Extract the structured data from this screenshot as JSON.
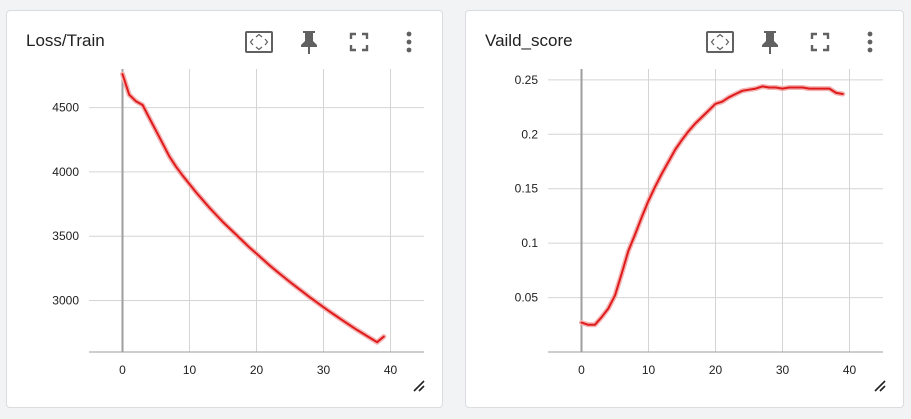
{
  "cards": [
    {
      "title": "Loss/Train",
      "tools": [
        "fit-domain-icon",
        "pin-icon",
        "fullscreen-icon",
        "more-vert-icon"
      ]
    },
    {
      "title": "Vaild_score",
      "tools": [
        "fit-domain-icon",
        "pin-icon",
        "fullscreen-icon",
        "more-vert-icon"
      ]
    }
  ],
  "colors": {
    "line": "#e01b1b",
    "smoothed_shadow": "#f3b3b3",
    "grid": "#d4d4d4",
    "axis": "#9e9e9e",
    "icon": "#616161"
  },
  "chart_data": [
    {
      "type": "line",
      "title": "Loss/Train",
      "xlabel": "",
      "ylabel": "",
      "xlim": [
        -5,
        45
      ],
      "ylim": [
        2600,
        4800
      ],
      "xticks": [
        0,
        10,
        20,
        30,
        40
      ],
      "yticks": [
        3000,
        3500,
        4000,
        4500
      ],
      "ytick_labels": [
        "3000",
        "3500",
        "4000",
        "4500"
      ],
      "grid": true,
      "series": [
        {
          "x": [
            0,
            1,
            2,
            3,
            4,
            5,
            6,
            7,
            8,
            9,
            10,
            11,
            12,
            13,
            14,
            15,
            16,
            17,
            18,
            19,
            20,
            21,
            22,
            23,
            24,
            25,
            26,
            27,
            28,
            29,
            30,
            31,
            32,
            33,
            34,
            35,
            36,
            37,
            38,
            39
          ],
          "values": [
            4760,
            4600,
            4550,
            4520,
            4420,
            4320,
            4220,
            4120,
            4040,
            3970,
            3905,
            3840,
            3780,
            3720,
            3665,
            3610,
            3560,
            3510,
            3460,
            3410,
            3365,
            3318,
            3272,
            3228,
            3186,
            3144,
            3104,
            3064,
            3024,
            2986,
            2948,
            2912,
            2876,
            2840,
            2806,
            2772,
            2740,
            2708,
            2676,
            2720
          ]
        }
      ]
    },
    {
      "type": "line",
      "title": "Vaild_score",
      "xlabel": "",
      "ylabel": "",
      "xlim": [
        -5,
        45
      ],
      "ylim": [
        0,
        0.26
      ],
      "xticks": [
        0,
        10,
        20,
        30,
        40
      ],
      "yticks": [
        0.05,
        0.1,
        0.15,
        0.2,
        0.25
      ],
      "ytick_labels": [
        "0.05",
        "0.1",
        "0.15",
        "0.2",
        "0.25"
      ],
      "grid": true,
      "series": [
        {
          "x": [
            0,
            1,
            2,
            3,
            4,
            5,
            6,
            7,
            8,
            9,
            10,
            11,
            12,
            13,
            14,
            15,
            16,
            17,
            18,
            19,
            20,
            21,
            22,
            23,
            24,
            25,
            26,
            27,
            28,
            29,
            30,
            31,
            32,
            33,
            34,
            35,
            36,
            37,
            38,
            39
          ],
          "values": [
            0.027,
            0.025,
            0.025,
            0.032,
            0.04,
            0.052,
            0.072,
            0.093,
            0.108,
            0.124,
            0.139,
            0.152,
            0.164,
            0.175,
            0.186,
            0.195,
            0.203,
            0.21,
            0.216,
            0.222,
            0.228,
            0.23,
            0.234,
            0.237,
            0.24,
            0.241,
            0.242,
            0.244,
            0.243,
            0.243,
            0.242,
            0.243,
            0.243,
            0.243,
            0.242,
            0.242,
            0.242,
            0.242,
            0.238,
            0.237
          ]
        }
      ]
    }
  ]
}
